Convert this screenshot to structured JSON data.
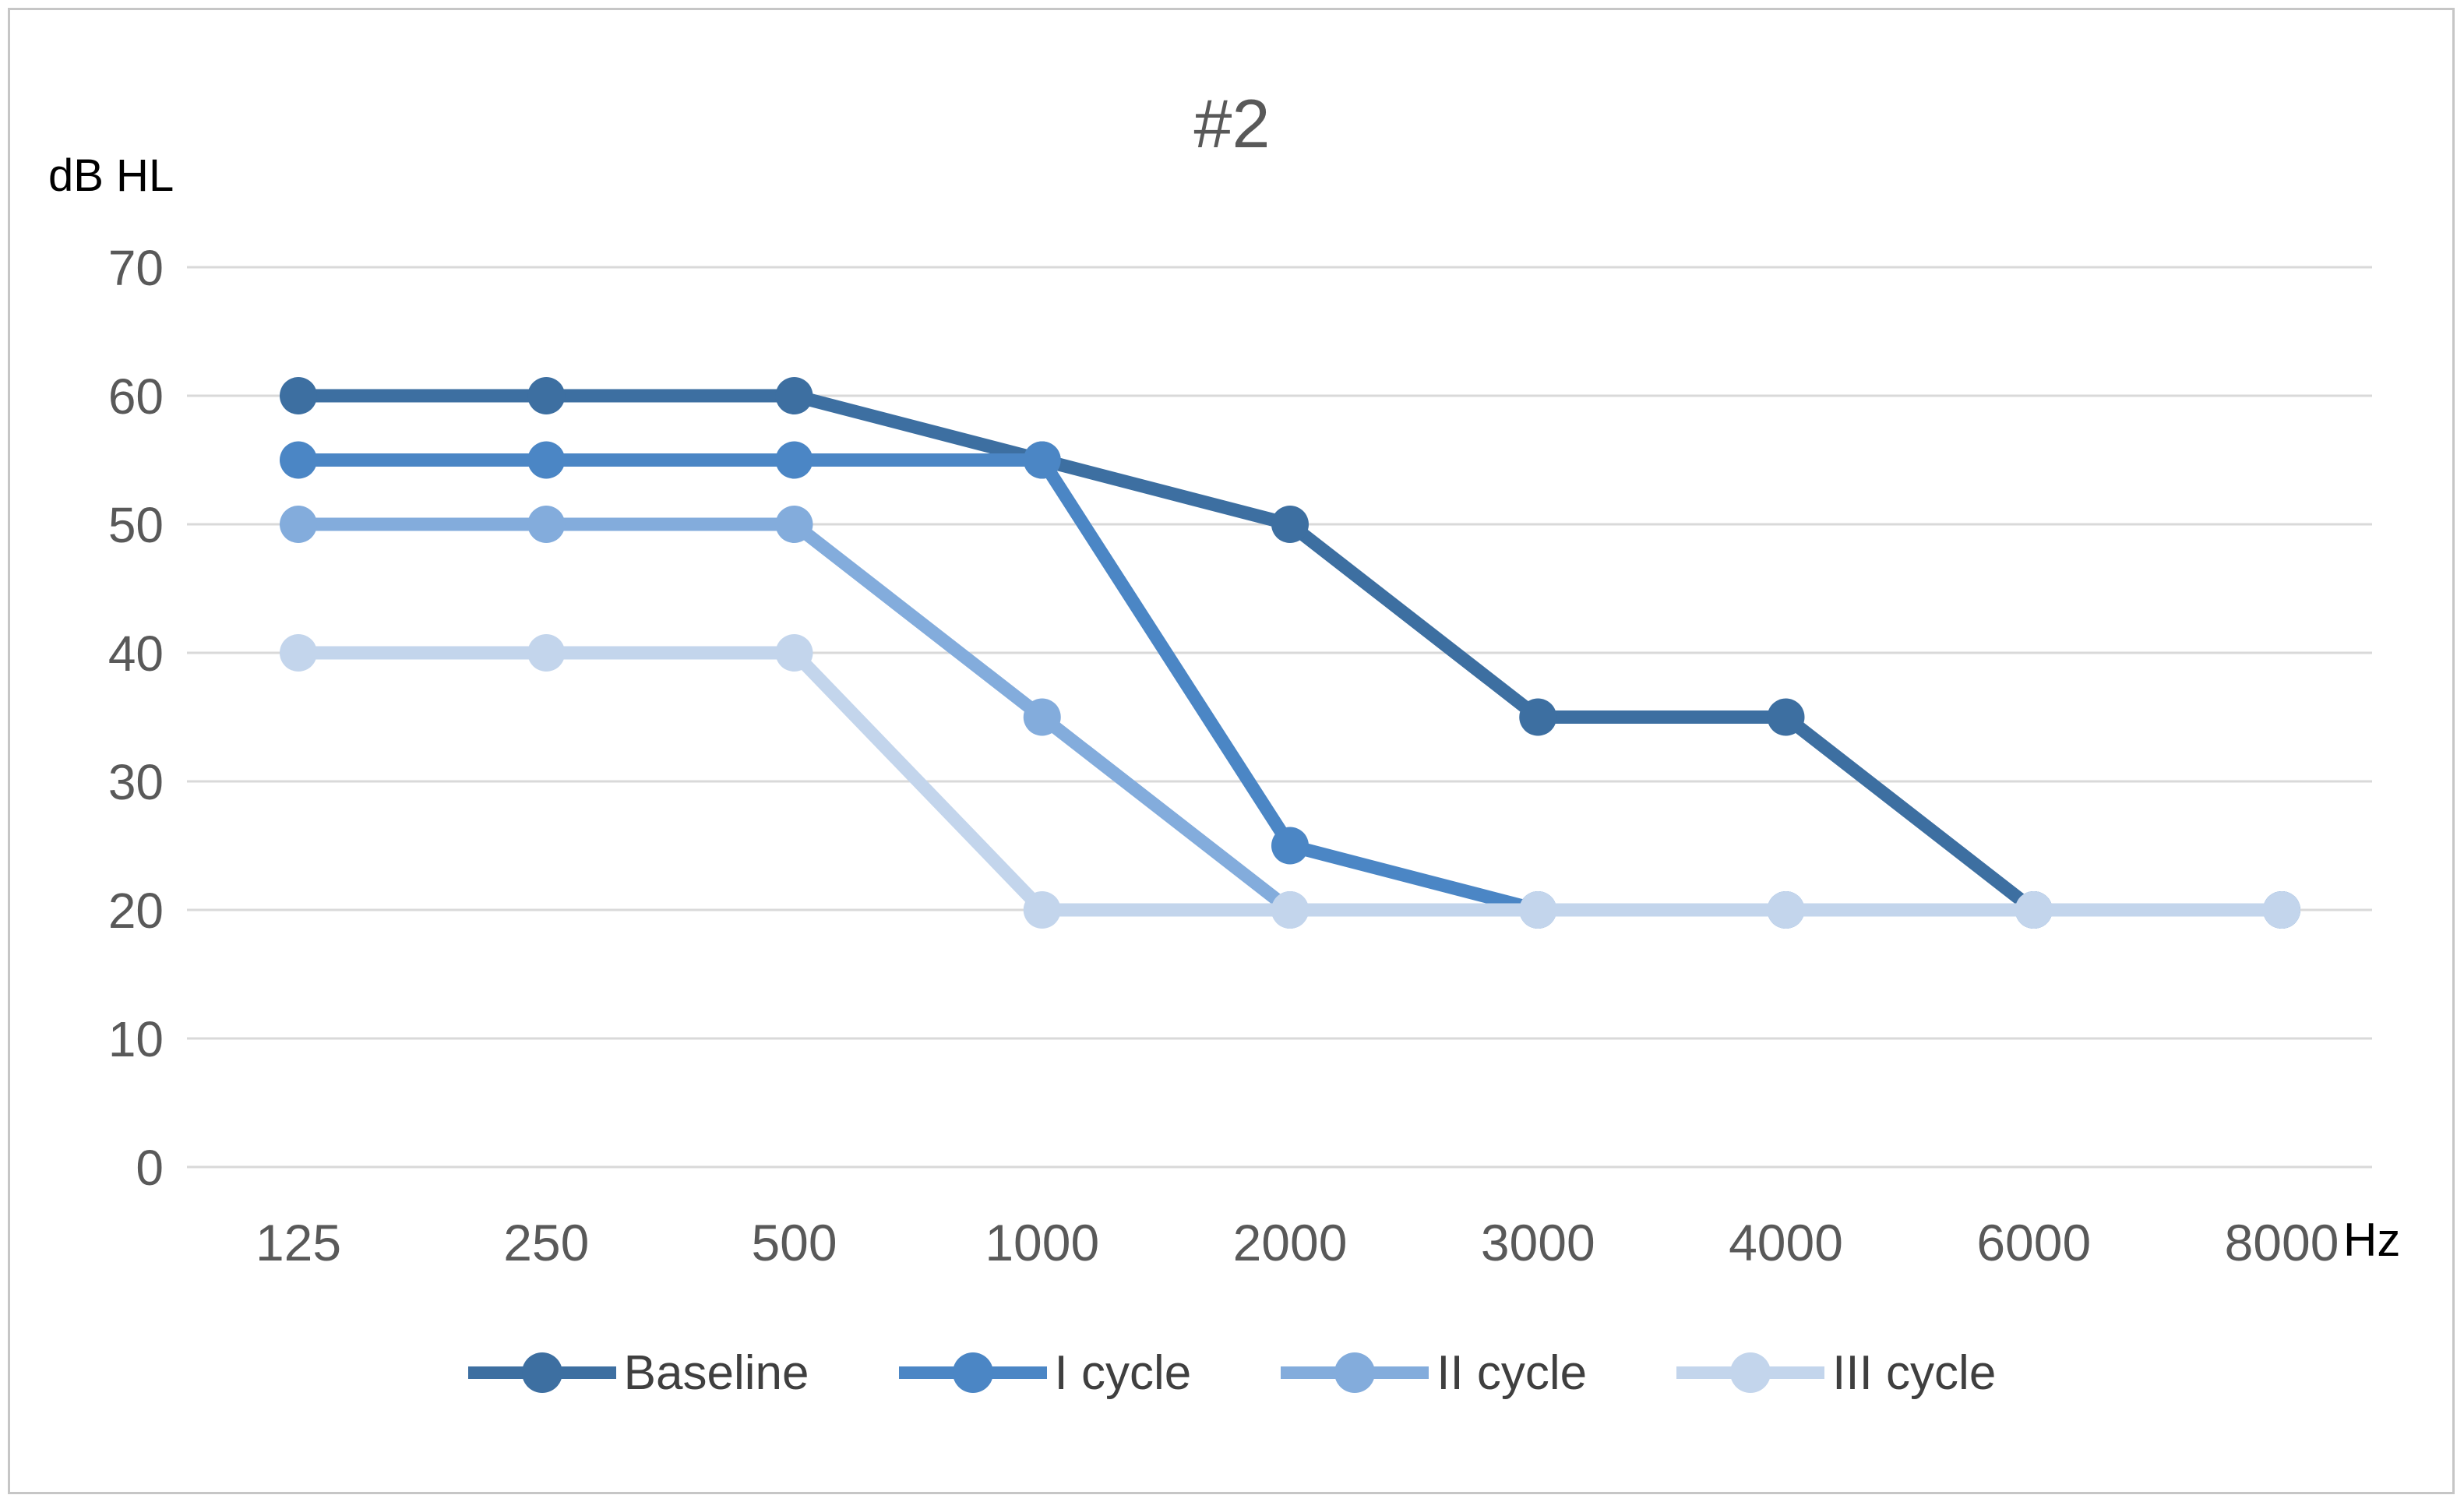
{
  "chart_data": {
    "type": "line",
    "title": "#2",
    "y_axis_label": "dB HL",
    "x_axis_unit_label": "Hz",
    "categories": [
      "125",
      "250",
      "500",
      "1000",
      "2000",
      "3000",
      "4000",
      "6000",
      "8000"
    ],
    "y_ticks": [
      70,
      60,
      50,
      40,
      30,
      20,
      10,
      0
    ],
    "ylim": [
      0,
      70
    ],
    "grid": "horizontal gridlines on",
    "legend_position": "bottom",
    "marker_style": "filled circle on thick line",
    "series": [
      {
        "name": "Baseline",
        "color": "#3d6fa1",
        "values": [
          60,
          60,
          60,
          55,
          50,
          35,
          35,
          20,
          20
        ]
      },
      {
        "name": "I cycle",
        "color": "#4b86c5",
        "values": [
          55,
          55,
          55,
          55,
          25,
          20,
          20,
          20,
          20
        ]
      },
      {
        "name": "II cycle",
        "color": "#83acdc",
        "values": [
          50,
          50,
          50,
          35,
          20,
          20,
          20,
          20,
          20
        ]
      },
      {
        "name": "III cycle",
        "color": "#c3d5ec",
        "values": [
          40,
          40,
          40,
          20,
          20,
          20,
          20,
          20,
          20
        ]
      }
    ],
    "colors": {
      "gridline": "#d9d9d9",
      "tick_label": "#595959",
      "title": "#595959",
      "axis_unit_label": "#000000",
      "legend_text": "#3f3f3f",
      "frame_border": "#c6c6c6",
      "background": "#ffffff"
    }
  }
}
